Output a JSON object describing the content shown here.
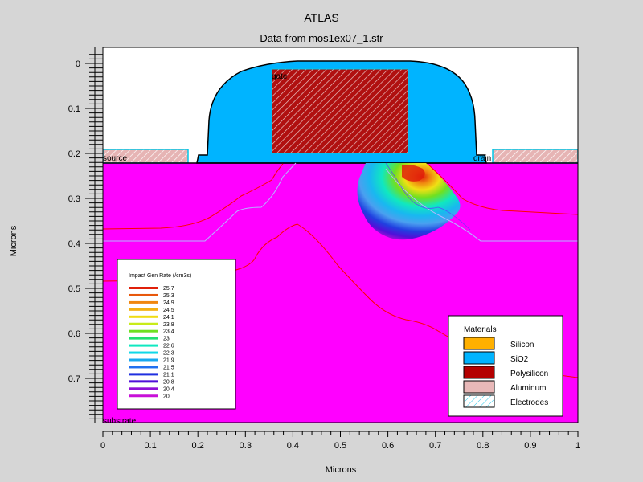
{
  "chart_data": {
    "type": "heatmap",
    "title": "ATLAS",
    "subtitle": "Data from mos1ex07_1.str",
    "xlabel": "Microns",
    "ylabel": "Microns",
    "xlim": [
      0,
      1
    ],
    "ylim": [
      0.8,
      -0.05
    ],
    "x_ticks": [
      0,
      0.1,
      0.2,
      0.3,
      0.4,
      0.5,
      0.6,
      0.7,
      0.8,
      0.9,
      1
    ],
    "x_tick_labels": [
      "0",
      "0.1",
      "0.2",
      "0.3",
      "0.4",
      "0.5",
      "0.6",
      "0.7",
      "0.8",
      "0.9",
      "1"
    ],
    "y_ticks": [
      0,
      0.1,
      0.2,
      0.3,
      0.4,
      0.5,
      0.6,
      0.7
    ],
    "y_tick_labels": [
      "0",
      "0.1",
      "0.2",
      "0.3",
      "0.4",
      "0.5",
      "0.6",
      "0.7"
    ],
    "region_labels": {
      "gate": "gate",
      "source": "source",
      "drain": "drain",
      "substrate": "substrate"
    },
    "colorbar": {
      "title": "Impact Gen Rate (/cm3s)",
      "levels": [
        "25.7",
        "25.3",
        "24.9",
        "24.5",
        "24.1",
        "23.8",
        "23.4",
        "23",
        "22.6",
        "22.3",
        "21.9",
        "21.5",
        "21.1",
        "20.8",
        "20.4",
        "20"
      ],
      "colors": [
        "#e0200a",
        "#e8580c",
        "#f0860e",
        "#f4b012",
        "#f0dc14",
        "#c8ec18",
        "#6ee020",
        "#20e070",
        "#10e8c0",
        "#10d8e8",
        "#18a8f0",
        "#2070f0",
        "#2030e0",
        "#5010d8",
        "#9010d8",
        "#c810d8"
      ]
    },
    "materials_legend": {
      "title": "Materials",
      "items": [
        {
          "label": "Silicon",
          "color": "#ffb000"
        },
        {
          "label": "SiO2",
          "color": "#00b4ff"
        },
        {
          "label": "Polysilicon",
          "color": "#b40000"
        },
        {
          "label": "Aluminum",
          "color": "#e8b8b8"
        },
        {
          "label": "Electrodes",
          "color": "#ffffff"
        }
      ]
    },
    "colors": {
      "background": "#d6d6d6",
      "substrate_fill": "#ff00ff",
      "oxide_fill": "#00b4ff",
      "junction_line": "#ff0000",
      "depletion_line": "#b4b4ff"
    }
  }
}
